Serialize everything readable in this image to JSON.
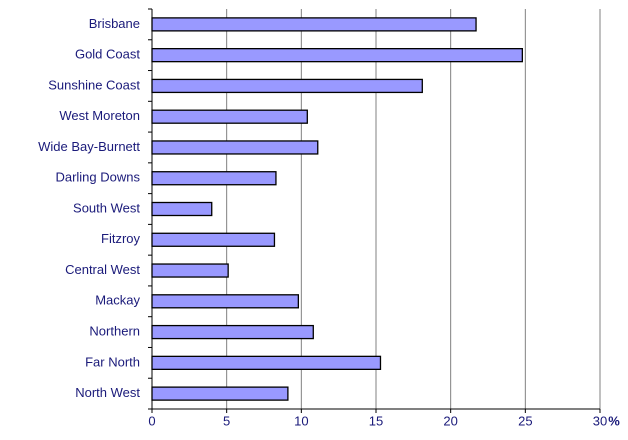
{
  "chart_data": {
    "type": "bar",
    "orientation": "horizontal",
    "categories": [
      "Brisbane",
      "Gold Coast",
      "Sunshine Coast",
      "West Moreton",
      "Wide Bay-Burnett",
      "Darling Downs",
      "South West",
      "Fitzroy",
      "Central West",
      "Mackay",
      "Northern",
      "Far North",
      "North West"
    ],
    "values": [
      21.7,
      24.8,
      18.1,
      10.4,
      11.1,
      8.3,
      4.0,
      8.2,
      5.1,
      9.8,
      10.8,
      15.3,
      9.1
    ],
    "color": "#9999ff",
    "x_label": "%",
    "xlim": [
      0,
      30
    ],
    "xticks": [
      0,
      5,
      10,
      15,
      20,
      25,
      30
    ],
    "grid": true
  }
}
